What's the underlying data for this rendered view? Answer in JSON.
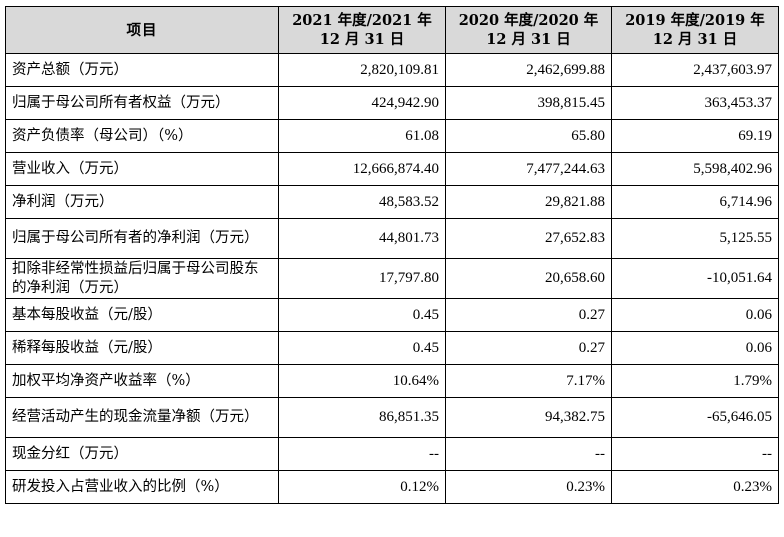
{
  "table": {
    "headers": {
      "item": "项目",
      "col_2021": "2021 年度/2021 年 12 月 31 日",
      "col_2020": "2020 年度/2020 年 12 月 31 日",
      "col_2019": "2019 年度/2019 年 12 月 31 日"
    },
    "rows": [
      {
        "label": "资产总额（万元）",
        "v2021": "2,820,109.81",
        "v2020": "2,462,699.88",
        "v2019": "2,437,603.97"
      },
      {
        "label": "归属于母公司所有者权益（万元）",
        "v2021": "424,942.90",
        "v2020": "398,815.45",
        "v2019": "363,453.37"
      },
      {
        "label": "资产负债率（母公司）（%）",
        "v2021": "61.08",
        "v2020": "65.80",
        "v2019": "69.19"
      },
      {
        "label": "营业收入（万元）",
        "v2021": "12,666,874.40",
        "v2020": "7,477,244.63",
        "v2019": "5,598,402.96"
      },
      {
        "label": "净利润（万元）",
        "v2021": "48,583.52",
        "v2020": "29,821.88",
        "v2019": "6,714.96"
      },
      {
        "label": "归属于母公司所有者的净利润（万元）",
        "v2021": "44,801.73",
        "v2020": "27,652.83",
        "v2019": "5,125.55"
      },
      {
        "label": "扣除非经常性损益后归属于母公司股东的净利润（万元）",
        "v2021": "17,797.80",
        "v2020": "20,658.60",
        "v2019": "-10,051.64"
      },
      {
        "label": "基本每股收益（元/股）",
        "v2021": "0.45",
        "v2020": "0.27",
        "v2019": "0.06"
      },
      {
        "label": "稀释每股收益（元/股）",
        "v2021": "0.45",
        "v2020": "0.27",
        "v2019": "0.06"
      },
      {
        "label": "加权平均净资产收益率（%）",
        "v2021": "10.64%",
        "v2020": "7.17%",
        "v2019": "1.79%"
      },
      {
        "label": "经营活动产生的现金流量净额（万元）",
        "v2021": "86,851.35",
        "v2020": "94,382.75",
        "v2019": "-65,646.05"
      },
      {
        "label": "现金分红（万元）",
        "v2021": "--",
        "v2020": "--",
        "v2019": "--"
      },
      {
        "label": "研发投入占营业收入的比例（%）",
        "v2021": "0.12%",
        "v2020": "0.23%",
        "v2019": "0.23%"
      }
    ]
  }
}
